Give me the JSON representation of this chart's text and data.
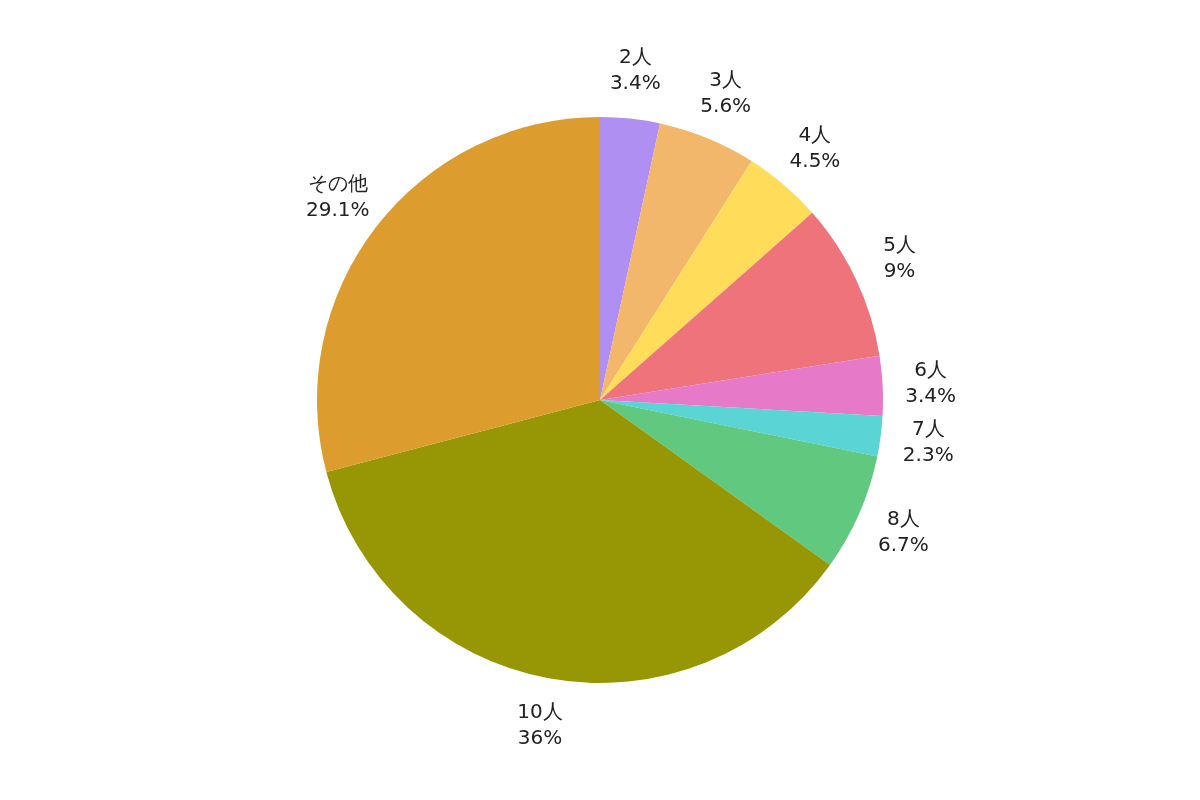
{
  "chart_data": {
    "type": "pie",
    "categories": [
      "2人",
      "3人",
      "4人",
      "5人",
      "6人",
      "7人",
      "8人",
      "10人",
      "その他"
    ],
    "values": [
      3.4,
      5.6,
      4.5,
      9,
      3.4,
      2.3,
      6.7,
      36,
      29.1
    ],
    "value_labels": [
      "3.4%",
      "5.6%",
      "4.5%",
      "9%",
      "3.4%",
      "2.3%",
      "6.7%",
      "36%",
      "29.1%"
    ],
    "colors": [
      "#af8ff2",
      "#f2b76b",
      "#ffdd5a",
      "#ef737b",
      "#e67ac8",
      "#5ad4d4",
      "#60c87f",
      "#979604",
      "#dd9c2e"
    ],
    "legend": false
  }
}
